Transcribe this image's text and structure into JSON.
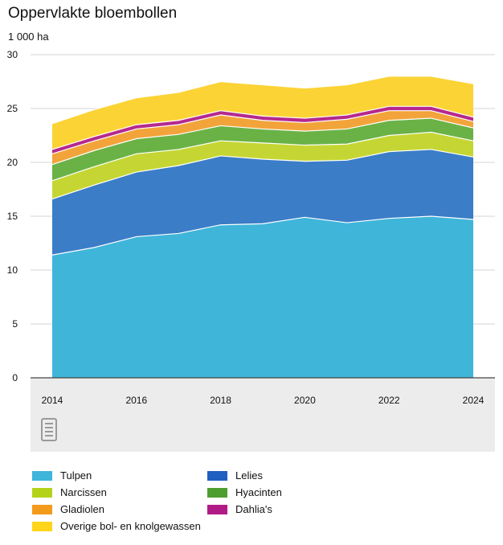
{
  "chart_data": {
    "type": "area",
    "stacked": true,
    "title": "Oppervlakte bloembollen",
    "ylabel": "1 000 ha",
    "xlabel": "",
    "ylim": [
      0,
      30
    ],
    "yticks": [
      "0",
      "5",
      "10",
      "15",
      "20",
      "25",
      "30"
    ],
    "xticks": [
      "2014",
      "2016",
      "2018",
      "2020",
      "2022",
      "2024"
    ],
    "x": [
      2014,
      2015,
      2016,
      2017,
      2018,
      2019,
      2020,
      2021,
      2022,
      2023,
      2024
    ],
    "series": [
      {
        "name": "Tulpen",
        "color": "#3fb5da",
        "values": [
          11.4,
          12.1,
          13.1,
          13.4,
          14.2,
          14.3,
          14.9,
          14.4,
          14.8,
          15.0,
          14.7
        ]
      },
      {
        "name": "Lelies",
        "color": "#3b7dc7",
        "values": [
          5.2,
          5.8,
          6.0,
          6.3,
          6.4,
          6.0,
          5.2,
          5.8,
          6.2,
          6.2,
          5.8
        ]
      },
      {
        "name": "Narcissen",
        "color": "#c5d634",
        "values": [
          1.7,
          1.7,
          1.7,
          1.5,
          1.4,
          1.5,
          1.5,
          1.5,
          1.5,
          1.6,
          1.5
        ]
      },
      {
        "name": "Hyacinten",
        "color": "#6ab246",
        "values": [
          1.5,
          1.5,
          1.4,
          1.4,
          1.4,
          1.3,
          1.3,
          1.4,
          1.4,
          1.3,
          1.2
        ]
      },
      {
        "name": "Gladiolen",
        "color": "#f2a43a",
        "values": [
          1.0,
          0.9,
          0.9,
          0.9,
          1.0,
          0.8,
          0.8,
          0.9,
          0.9,
          0.7,
          0.6
        ]
      },
      {
        "name": "Dahlia's",
        "color": "#b5298e",
        "values": [
          0.4,
          0.4,
          0.4,
          0.4,
          0.4,
          0.4,
          0.4,
          0.4,
          0.4,
          0.4,
          0.4
        ]
      },
      {
        "name": "Overige bol- en knolgewassen",
        "color": "#fcd335",
        "values": [
          2.4,
          2.5,
          2.5,
          2.6,
          2.7,
          2.9,
          2.8,
          2.8,
          2.8,
          2.8,
          3.1
        ]
      }
    ]
  },
  "legend": [
    {
      "label": "Tulpen",
      "color": "#3fb5da"
    },
    {
      "label": "Lelies",
      "color": "#3b7dc7"
    },
    {
      "label": "Narcissen",
      "color": "#c5d634"
    },
    {
      "label": "Hyacinten",
      "color": "#6ab246"
    },
    {
      "label": "Gladiolen",
      "color": "#f2a43a"
    },
    {
      "label": "Dahlia's",
      "color": "#b5298e"
    },
    {
      "label": "Overige bol- en knolgewassen",
      "color": "#fcd335"
    }
  ],
  "logo": {
    "name": "cbs"
  }
}
